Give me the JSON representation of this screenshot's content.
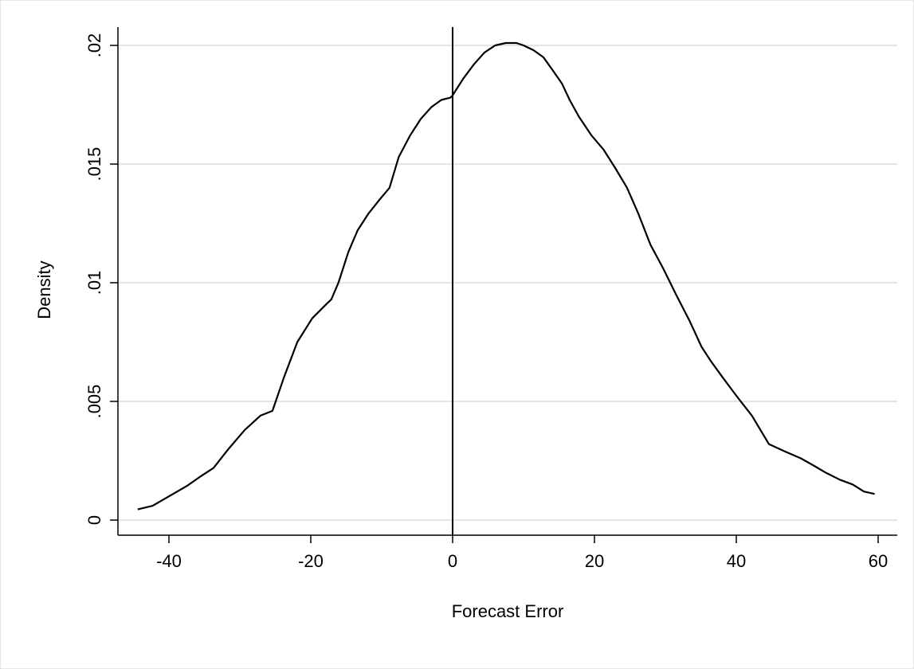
{
  "chart_data": {
    "type": "line",
    "title": "",
    "xlabel": "Forecast Error",
    "ylabel": "Density",
    "xlim": [
      -46,
      62
    ],
    "ylim": [
      0,
      0.0207
    ],
    "x_ticks": [
      {
        "value": -40,
        "label": "-40"
      },
      {
        "value": -20,
        "label": "-20"
      },
      {
        "value": 0,
        "label": "0"
      },
      {
        "value": 20,
        "label": "20"
      },
      {
        "value": 40,
        "label": "40"
      },
      {
        "value": 60,
        "label": "60"
      }
    ],
    "y_ticks": [
      {
        "value": 0,
        "label": "0"
      },
      {
        "value": 0.005,
        "label": ".005"
      },
      {
        "value": 0.01,
        "label": ".01"
      },
      {
        "value": 0.015,
        "label": ".015"
      },
      {
        "value": 0.02,
        "label": ".02"
      }
    ],
    "grid": "horizontal",
    "reference_line_x": 0,
    "series": [
      {
        "x": [
          -44.4,
          -42.3,
          -40,
          -37.4,
          -35.5,
          -33.7,
          -31.6,
          -29.3,
          -27.1,
          -25.4,
          -23.8,
          -21.9,
          -19.8,
          -17.8,
          -17.1,
          -16.1,
          -14.7,
          -13.4,
          -11.9,
          -10.3,
          -8.9,
          -7.6,
          -6.0,
          -4.5,
          -3.0,
          -1.6,
          -0.3,
          0,
          1.5,
          3.0,
          4.5,
          6.0,
          7.5,
          9.0,
          10.0,
          11.4,
          12.8,
          14.0,
          15.4,
          16.5,
          17.8,
          19.6,
          21.3,
          23.0,
          24.6,
          26.2,
          27.9,
          29.7,
          31.5,
          33.4,
          35.1,
          36.4,
          38.1,
          40.1,
          42.2,
          44.6,
          46.8,
          49.1,
          50.9,
          52.6,
          54.6,
          56.4,
          58.0,
          59.5
        ],
        "y": [
          0.00045,
          0.0006,
          0.001,
          0.00145,
          0.00185,
          0.0022,
          0.003,
          0.0038,
          0.0044,
          0.0046,
          0.006,
          0.0075,
          0.0085,
          0.0091,
          0.0093,
          0.01,
          0.0113,
          0.0122,
          0.0129,
          0.0135,
          0.014,
          0.0153,
          0.0162,
          0.0169,
          0.0174,
          0.0177,
          0.0178,
          0.0179,
          0.0186,
          0.0192,
          0.0197,
          0.02,
          0.0201,
          0.0201,
          0.02,
          0.0198,
          0.0195,
          0.019,
          0.0184,
          0.0177,
          0.017,
          0.0162,
          0.0156,
          0.0148,
          0.014,
          0.0129,
          0.0116,
          0.0106,
          0.0095,
          0.0084,
          0.0073,
          0.0067,
          0.006,
          0.0052,
          0.0044,
          0.0032,
          0.0029,
          0.0026,
          0.0023,
          0.002,
          0.0017,
          0.0015,
          0.0012,
          0.0011
        ]
      }
    ]
  }
}
